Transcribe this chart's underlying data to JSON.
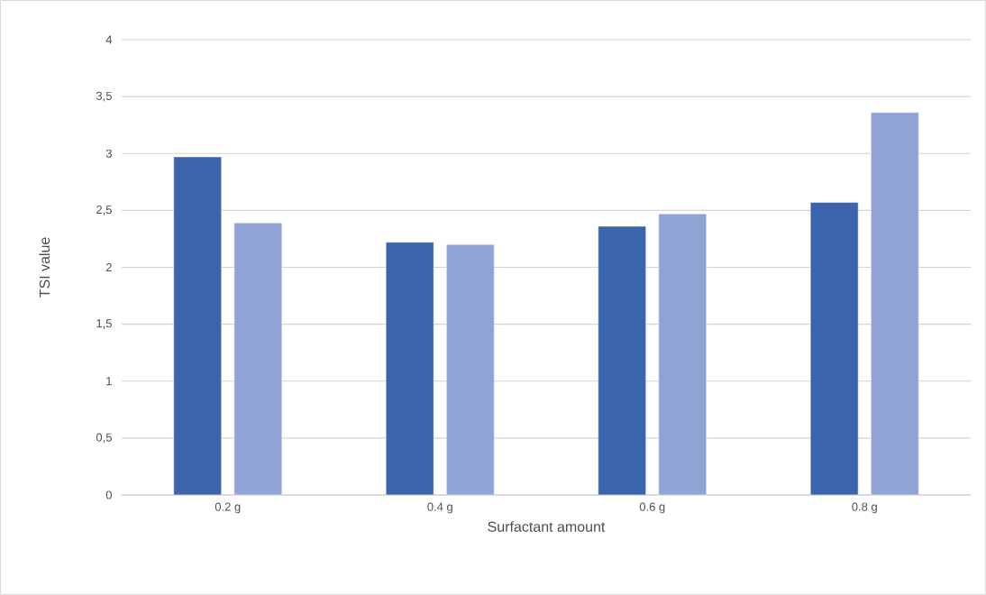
{
  "chart_data": {
    "type": "bar",
    "xlabel": "Surfactant amount",
    "ylabel": "TSI value",
    "categories": [
      "0.2 g",
      "0.4 g",
      "0.6 g",
      "0.8 g"
    ],
    "series": [
      {
        "color": "#3c64ac",
        "values": [
          2.97,
          2.22,
          2.36,
          2.57
        ]
      },
      {
        "color": "#8fa3d4",
        "values": [
          2.39,
          2.2,
          2.47,
          3.36
        ]
      }
    ],
    "ylim": [
      0,
      4
    ],
    "yticks": [
      0,
      {
        "value": 0.5,
        "label": "0,5"
      },
      1,
      {
        "value": 1.5,
        "label": "1,5"
      },
      2,
      {
        "value": 2.5,
        "label": "2,5"
      },
      3,
      {
        "value": 3.5,
        "label": "3,5"
      },
      4
    ],
    "grid": "y"
  }
}
